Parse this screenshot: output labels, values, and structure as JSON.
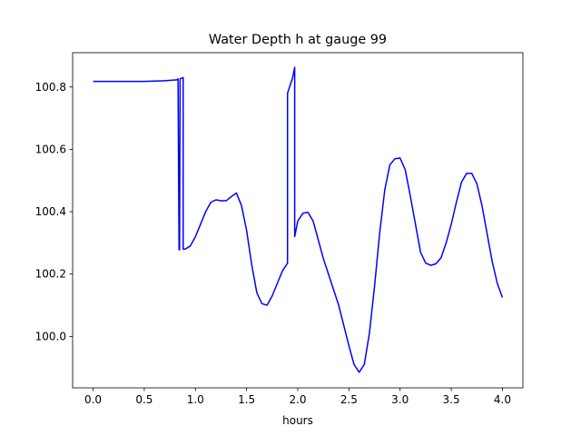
{
  "chart_data": {
    "type": "line",
    "title": "Water Depth h at gauge 99",
    "xlabel": "hours",
    "ylabel": "",
    "xlim": [
      -0.2,
      4.2
    ],
    "ylim": [
      99.835,
      100.91
    ],
    "xticks": [
      0.0,
      0.5,
      1.0,
      1.5,
      2.0,
      2.5,
      3.0,
      3.5,
      4.0
    ],
    "xtick_labels": [
      "0.0",
      "0.5",
      "1.0",
      "1.5",
      "2.0",
      "2.5",
      "3.0",
      "3.5",
      "4.0"
    ],
    "yticks": [
      100.0,
      100.2,
      100.4,
      100.6,
      100.8
    ],
    "ytick_labels": [
      "100.0",
      "100.2",
      "100.4",
      "100.6",
      "100.8"
    ],
    "grid": false,
    "line_color": "#0000ff",
    "series": [
      {
        "name": "",
        "x": [
          0.0,
          0.5,
          0.7,
          0.82,
          0.83,
          0.84,
          0.845,
          0.85,
          0.88,
          0.88,
          0.9,
          0.95,
          1.0,
          1.05,
          1.1,
          1.15,
          1.2,
          1.25,
          1.3,
          1.35,
          1.4,
          1.45,
          1.5,
          1.55,
          1.6,
          1.65,
          1.7,
          1.75,
          1.8,
          1.85,
          1.9,
          1.9,
          1.95,
          1.97,
          1.97,
          2.0,
          2.05,
          2.1,
          2.15,
          2.2,
          2.25,
          2.3,
          2.4,
          2.5,
          2.55,
          2.6,
          2.65,
          2.7,
          2.75,
          2.8,
          2.85,
          2.9,
          2.95,
          3.0,
          3.05,
          3.1,
          3.15,
          3.2,
          3.25,
          3.3,
          3.35,
          3.4,
          3.45,
          3.5,
          3.55,
          3.6,
          3.65,
          3.7,
          3.75,
          3.8,
          3.85,
          3.9,
          3.95,
          4.0
        ],
        "y": [
          100.818,
          100.818,
          100.82,
          100.823,
          100.826,
          100.278,
          100.278,
          100.826,
          100.83,
          100.28,
          100.28,
          100.29,
          100.32,
          100.36,
          100.4,
          100.43,
          100.438,
          100.435,
          100.435,
          100.448,
          100.46,
          100.42,
          100.34,
          100.23,
          100.14,
          100.105,
          100.1,
          100.13,
          100.17,
          100.21,
          100.235,
          100.78,
          100.83,
          100.863,
          100.32,
          100.37,
          100.395,
          100.398,
          100.37,
          100.31,
          100.25,
          100.2,
          100.1,
          99.97,
          99.91,
          99.885,
          99.91,
          100.01,
          100.16,
          100.33,
          100.47,
          100.55,
          100.57,
          100.572,
          100.535,
          100.45,
          100.36,
          100.27,
          100.235,
          100.228,
          100.233,
          100.252,
          100.3,
          100.36,
          100.43,
          100.495,
          100.523,
          100.523,
          100.49,
          100.42,
          100.33,
          100.24,
          100.17,
          100.125
        ]
      }
    ]
  }
}
